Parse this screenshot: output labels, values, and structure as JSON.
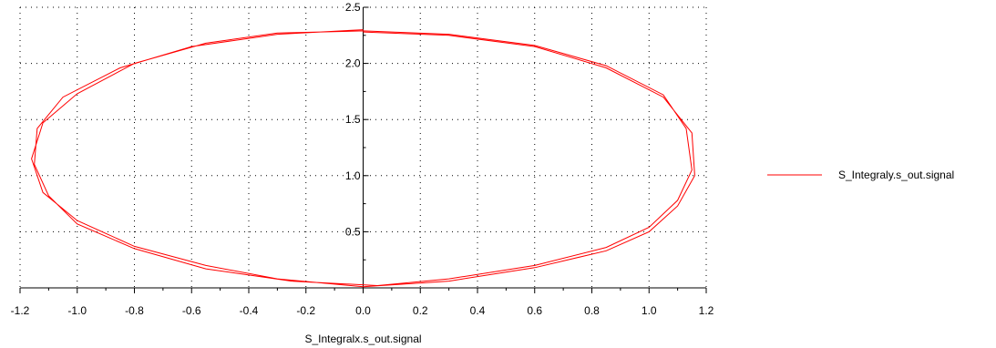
{
  "chart_data": {
    "type": "line",
    "title": "",
    "xlabel": "S_Integralx.s_out.signal",
    "ylabel": "",
    "xlim": [
      -1.2,
      1.2
    ],
    "ylim": [
      0,
      2.5
    ],
    "x_ticks": [
      -1.2,
      -1.0,
      -0.8,
      -0.6,
      -0.4,
      -0.2,
      0.0,
      0.2,
      0.4,
      0.6,
      0.8,
      1.0,
      1.2
    ],
    "x_tick_labels": [
      "-1.2",
      "-1.0",
      "-0.8",
      "-0.6",
      "-0.4",
      "-0.2",
      "0.0",
      "0.2",
      "0.4",
      "0.6",
      "0.8",
      "1.0",
      "1.2"
    ],
    "y_ticks": [
      0.5,
      1.0,
      1.5,
      2.0,
      2.5
    ],
    "y_tick_labels": [
      "0.5",
      "1.0",
      "1.5",
      "2.0",
      "2.5"
    ],
    "grid": true,
    "legend_position": "right",
    "series": [
      {
        "name": "S_Integraly.s_out.signal",
        "color": "#ff0000",
        "x": [
          0.0,
          0.3,
          0.6,
          0.85,
          1.05,
          1.15,
          1.16,
          1.1,
          1.0,
          0.85,
          0.6,
          0.3,
          0.0,
          -0.3,
          -0.55,
          -0.8,
          -1.0,
          -1.12,
          -1.16,
          -1.12,
          -1.0,
          -0.8,
          -0.55,
          -0.3,
          0.0,
          0.3,
          0.6,
          0.85,
          1.05,
          1.13,
          1.15,
          1.1,
          1.0,
          0.85,
          0.6,
          0.3,
          0.05,
          -0.25,
          -0.55,
          -0.8,
          -1.0,
          -1.1,
          -1.15,
          -1.14,
          -1.05,
          -0.85,
          -0.6,
          -0.3,
          0.0
        ],
        "y": [
          2.28,
          2.25,
          2.15,
          1.96,
          1.7,
          1.38,
          1.0,
          0.73,
          0.5,
          0.33,
          0.18,
          0.06,
          0.01,
          0.08,
          0.2,
          0.37,
          0.6,
          0.85,
          1.15,
          1.47,
          1.73,
          2.0,
          2.18,
          2.27,
          2.29,
          2.26,
          2.16,
          1.98,
          1.72,
          1.42,
          1.05,
          0.78,
          0.54,
          0.36,
          0.2,
          0.08,
          0.02,
          0.06,
          0.17,
          0.35,
          0.57,
          0.82,
          1.1,
          1.42,
          1.7,
          1.96,
          2.15,
          2.26,
          2.3
        ]
      }
    ]
  }
}
